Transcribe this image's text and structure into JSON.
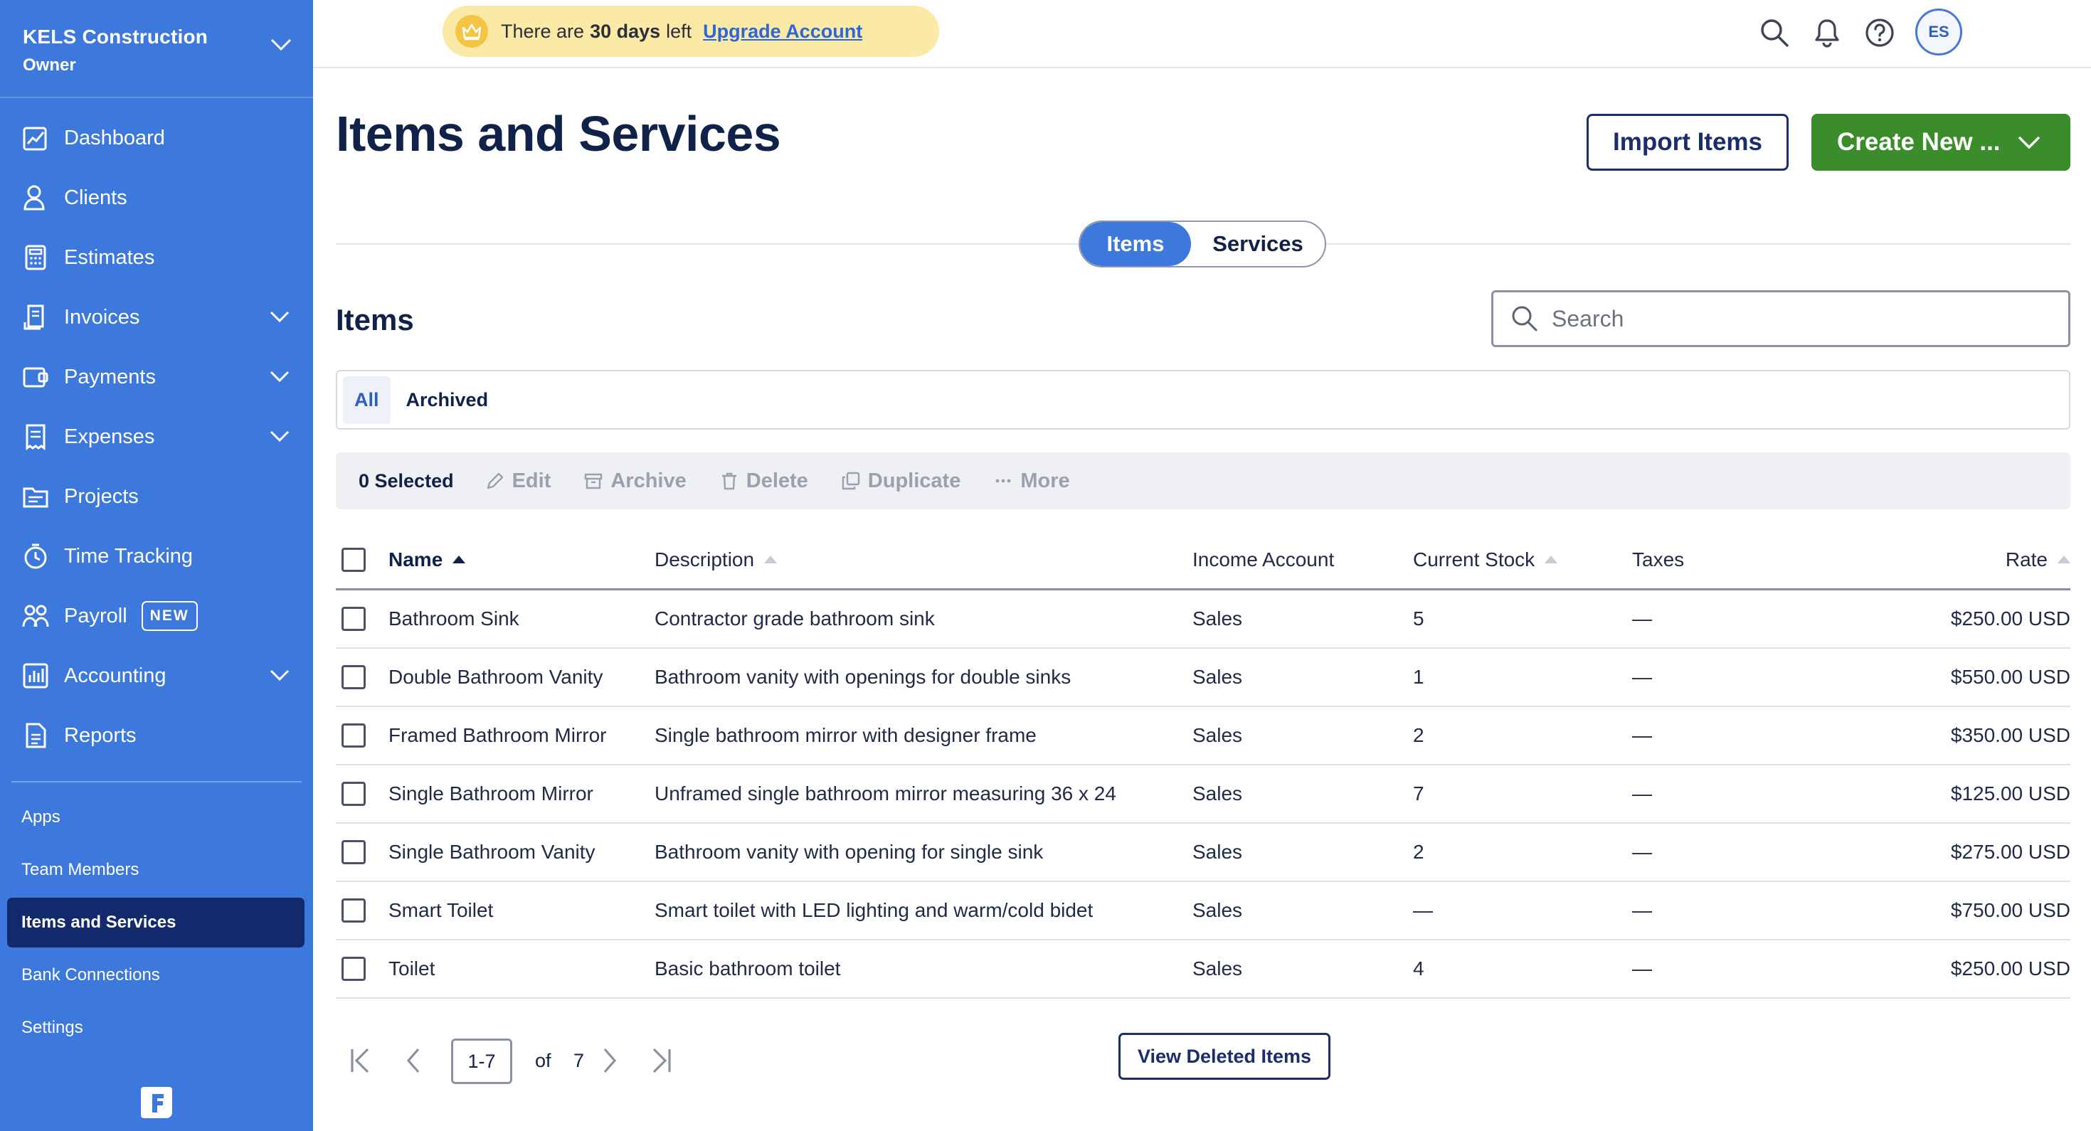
{
  "sidebar": {
    "company_name": "KELS Construction",
    "company_role": "Owner",
    "nav": [
      {
        "label": "Dashboard",
        "icon": "dashboard-icon"
      },
      {
        "label": "Clients",
        "icon": "clients-icon"
      },
      {
        "label": "Estimates",
        "icon": "estimates-icon"
      },
      {
        "label": "Invoices",
        "icon": "invoices-icon",
        "expandable": true
      },
      {
        "label": "Payments",
        "icon": "payments-icon",
        "expandable": true
      },
      {
        "label": "Expenses",
        "icon": "expenses-icon",
        "expandable": true
      },
      {
        "label": "Projects",
        "icon": "projects-icon"
      },
      {
        "label": "Time Tracking",
        "icon": "time-tracking-icon"
      },
      {
        "label": "Payroll",
        "icon": "payroll-icon",
        "badge": "NEW"
      },
      {
        "label": "Accounting",
        "icon": "accounting-icon",
        "expandable": true
      },
      {
        "label": "Reports",
        "icon": "reports-icon"
      }
    ],
    "secondary": [
      "Apps",
      "Team Members",
      "Items and Services",
      "Bank Connections",
      "Settings"
    ],
    "active_secondary": "Items and Services",
    "sidebar_color": "#3d78dc",
    "active_color": "#12296b"
  },
  "topbar": {
    "trial_prefix": "There are",
    "trial_days": "30 days",
    "trial_suffix": "left",
    "upgrade_label": "Upgrade Account",
    "avatar_initials": "ES"
  },
  "page": {
    "title": "Items and Services",
    "import_label": "Import Items",
    "create_label": "Create New ...",
    "toggle": {
      "items": "Items",
      "services": "Services",
      "active": "Items"
    },
    "section_title": "Items",
    "search_placeholder": "Search",
    "filters": {
      "all": "All",
      "archived": "Archived"
    },
    "actions": {
      "selected": "0 Selected",
      "edit": "Edit",
      "archive": "Archive",
      "delete": "Delete",
      "duplicate": "Duplicate",
      "more": "More"
    },
    "accent_green": "#3b8c2a"
  },
  "table": {
    "headers": {
      "name": "Name",
      "description": "Description",
      "income_account": "Income Account",
      "current_stock": "Current Stock",
      "taxes": "Taxes",
      "rate": "Rate"
    },
    "rows": [
      {
        "name": "Bathroom Sink",
        "description": "Contractor grade bathroom sink",
        "account": "Sales",
        "stock": "5",
        "taxes": "—",
        "rate": "$250.00 USD"
      },
      {
        "name": "Double Bathroom Vanity",
        "description": "Bathroom vanity with openings for double sinks",
        "account": "Sales",
        "stock": "1",
        "taxes": "—",
        "rate": "$550.00 USD"
      },
      {
        "name": "Framed Bathroom Mirror",
        "description": "Single bathroom mirror with designer frame",
        "account": "Sales",
        "stock": "2",
        "taxes": "—",
        "rate": "$350.00 USD"
      },
      {
        "name": "Single Bathroom Mirror",
        "description": "Unframed single bathroom mirror measuring 36 x 24",
        "account": "Sales",
        "stock": "7",
        "taxes": "—",
        "rate": "$125.00 USD"
      },
      {
        "name": "Single Bathroom Vanity",
        "description": "Bathroom vanity with opening for single sink",
        "account": "Sales",
        "stock": "2",
        "taxes": "—",
        "rate": "$275.00 USD"
      },
      {
        "name": "Smart Toilet",
        "description": "Smart toilet with LED lighting and warm/cold bidet",
        "account": "Sales",
        "stock": "—",
        "taxes": "—",
        "rate": "$750.00 USD"
      },
      {
        "name": "Toilet",
        "description": "Basic bathroom toilet",
        "account": "Sales",
        "stock": "4",
        "taxes": "—",
        "rate": "$250.00 USD"
      }
    ]
  },
  "pagination": {
    "range": "1-7",
    "of": "of",
    "total": "7",
    "view_deleted_label": "View Deleted Items"
  }
}
